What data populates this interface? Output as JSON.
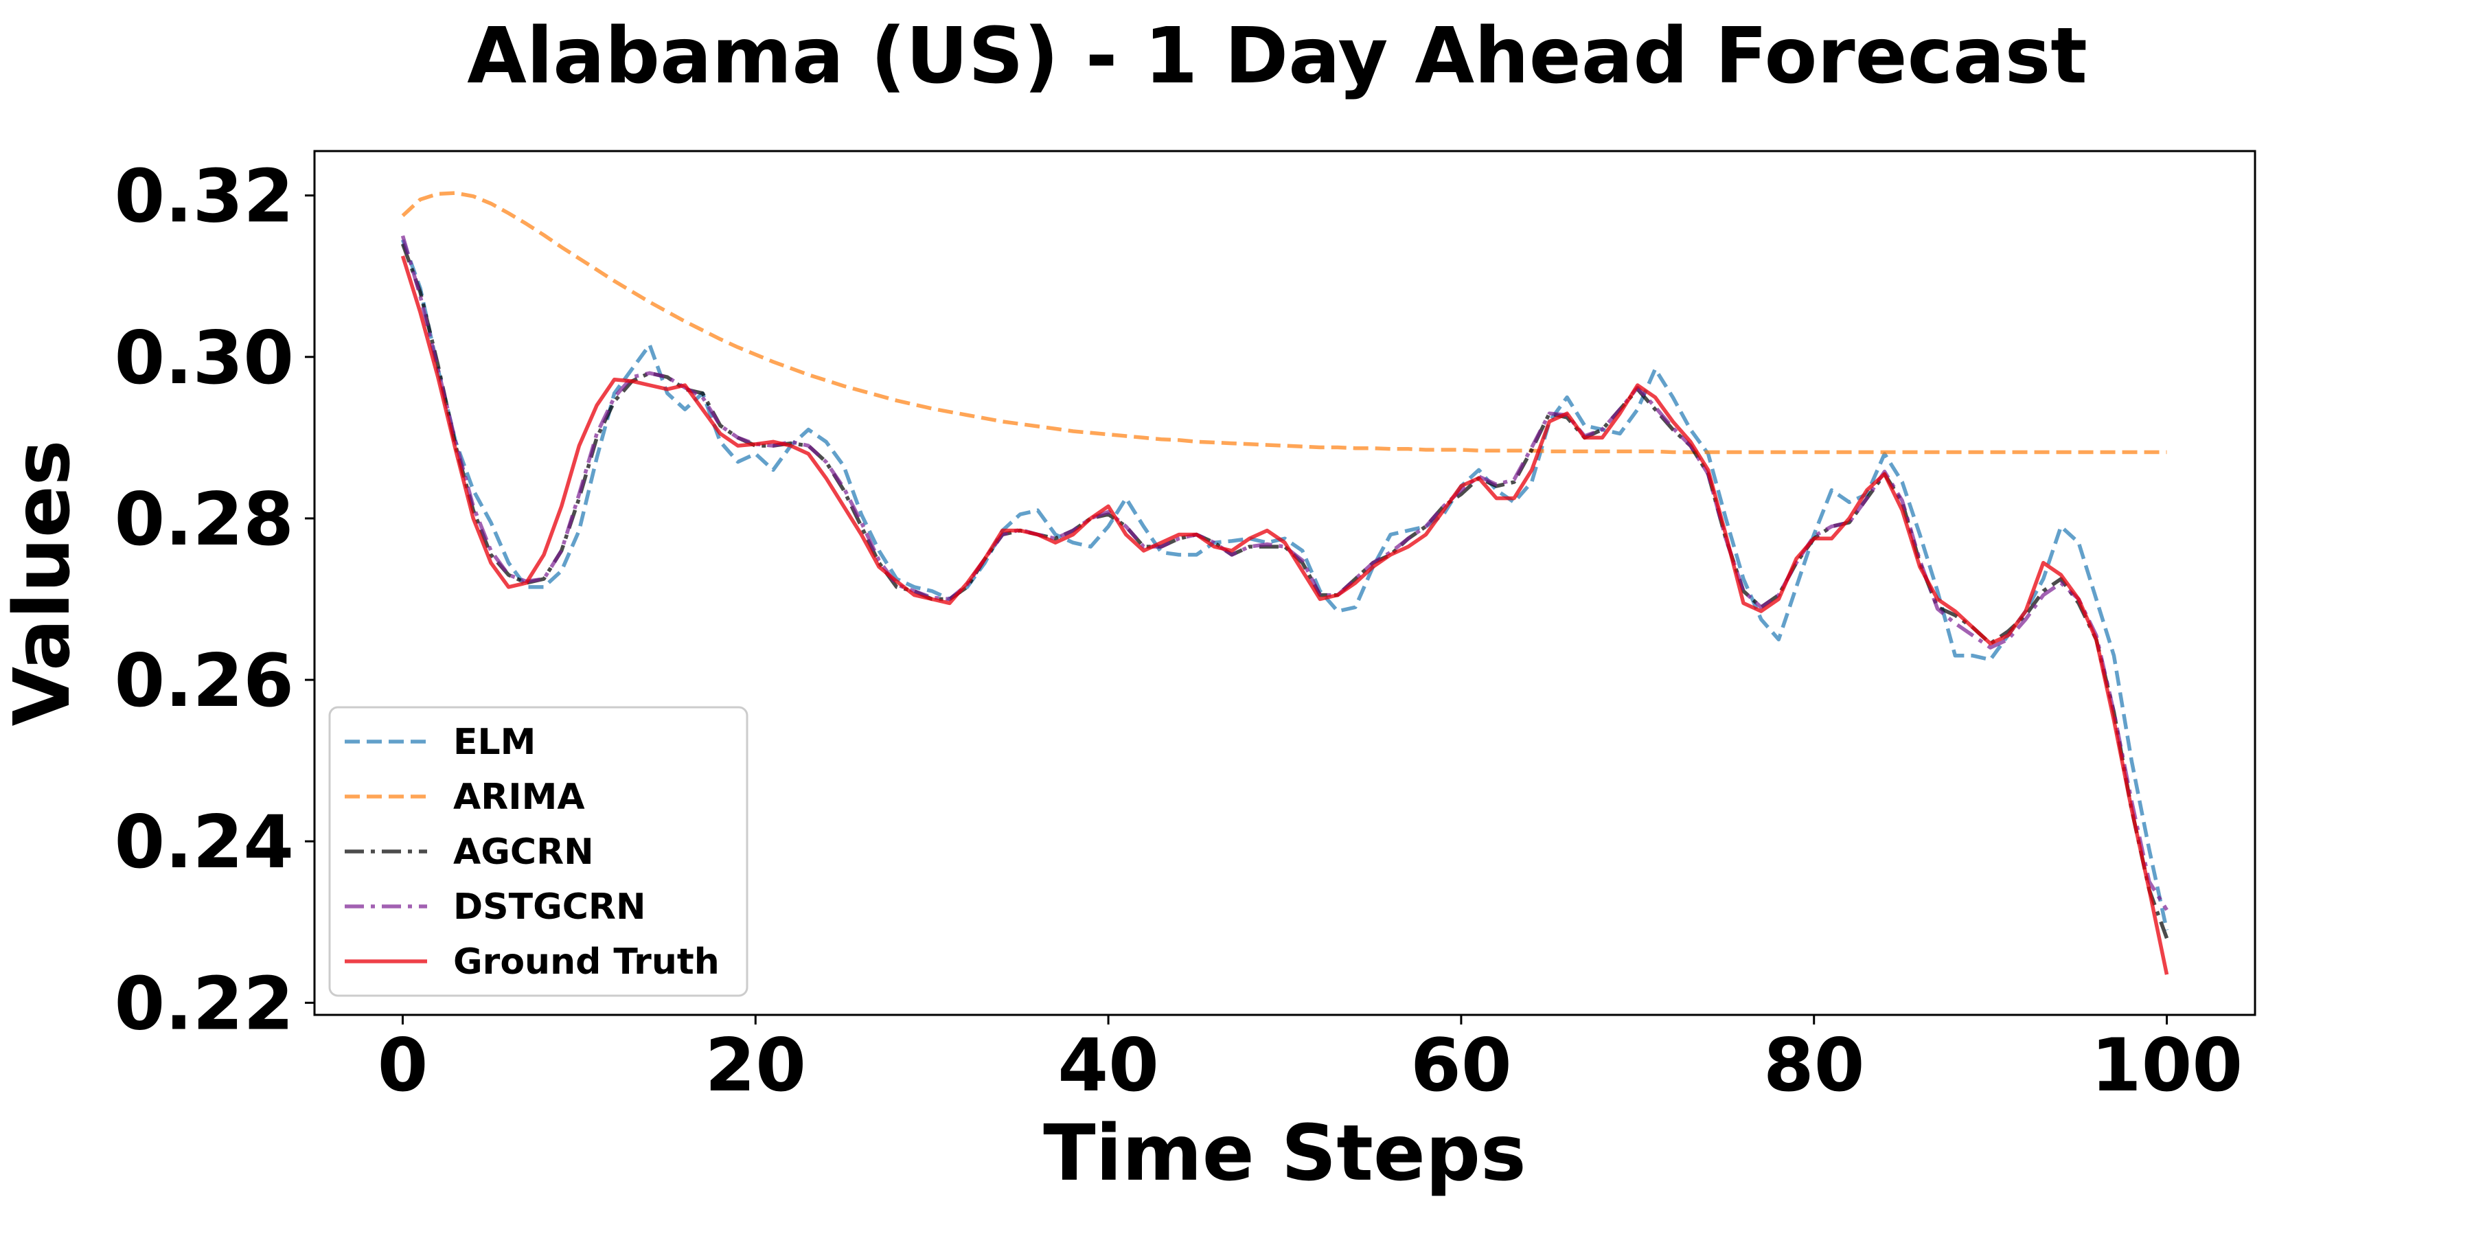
{
  "chart_data": {
    "type": "line",
    "title": "Alabama (US) - 1 Day Ahead Forecast",
    "xlabel": "Time Steps",
    "ylabel": "Values",
    "xlim": [
      -5,
      105
    ],
    "ylim": [
      0.2185,
      0.3255
    ],
    "xticks": [
      0,
      20,
      40,
      60,
      80,
      100
    ],
    "xtick_labels": [
      "0",
      "20",
      "40",
      "60",
      "80",
      "100"
    ],
    "yticks": [
      0.22,
      0.24,
      0.26,
      0.28,
      0.3,
      0.32
    ],
    "ytick_labels": [
      "0.22",
      "0.24",
      "0.26",
      "0.28",
      "0.30",
      "0.32"
    ],
    "grid": false,
    "legend_position": "lower-left",
    "x": [
      0,
      1,
      2,
      3,
      4,
      5,
      6,
      7,
      8,
      9,
      10,
      11,
      12,
      13,
      14,
      15,
      16,
      17,
      18,
      19,
      20,
      21,
      22,
      23,
      24,
      25,
      26,
      27,
      28,
      29,
      30,
      31,
      32,
      33,
      34,
      35,
      36,
      37,
      38,
      39,
      40,
      41,
      42,
      43,
      44,
      45,
      46,
      47,
      48,
      49,
      50,
      51,
      52,
      53,
      54,
      55,
      56,
      57,
      58,
      59,
      60,
      61,
      62,
      63,
      64,
      65,
      66,
      67,
      68,
      69,
      70,
      71,
      72,
      73,
      74,
      75,
      76,
      77,
      78,
      79,
      80,
      81,
      82,
      83,
      84,
      85,
      86,
      87,
      88,
      89,
      90,
      91,
      92,
      93,
      94,
      95,
      96,
      97,
      98,
      99,
      100
    ],
    "series": [
      {
        "name": "ELM",
        "color": "#1f77b4",
        "dash": "dashed",
        "values": [
          0.3145,
          0.3085,
          0.2985,
          0.2895,
          0.2835,
          0.2795,
          0.2745,
          0.2715,
          0.2715,
          0.2735,
          0.2785,
          0.2875,
          0.2955,
          0.2985,
          0.3015,
          0.2955,
          0.2935,
          0.2955,
          0.2895,
          0.287,
          0.288,
          0.286,
          0.289,
          0.291,
          0.2895,
          0.2865,
          0.2805,
          0.276,
          0.2725,
          0.2715,
          0.271,
          0.27,
          0.2715,
          0.2745,
          0.2785,
          0.2805,
          0.281,
          0.278,
          0.277,
          0.2765,
          0.279,
          0.2825,
          0.279,
          0.2758,
          0.2755,
          0.2755,
          0.277,
          0.2772,
          0.2775,
          0.277,
          0.2775,
          0.276,
          0.271,
          0.2685,
          0.269,
          0.274,
          0.278,
          0.2785,
          0.279,
          0.2805,
          0.284,
          0.286,
          0.2835,
          0.282,
          0.2845,
          0.292,
          0.295,
          0.2915,
          0.291,
          0.2905,
          0.2935,
          0.2985,
          0.295,
          0.291,
          0.288,
          0.28,
          0.2725,
          0.2675,
          0.265,
          0.2715,
          0.278,
          0.2835,
          0.282,
          0.283,
          0.288,
          0.2845,
          0.278,
          0.271,
          0.263,
          0.263,
          0.2625,
          0.2655,
          0.2685,
          0.2725,
          0.279,
          0.277,
          0.27,
          0.263,
          0.25,
          0.239,
          0.229
        ]
      },
      {
        "name": "ARIMA",
        "color": "#ff7f0e",
        "dash": "dashed",
        "values": [
          0.3175,
          0.3195,
          0.3202,
          0.3203,
          0.3199,
          0.319,
          0.3178,
          0.3165,
          0.3151,
          0.3136,
          0.3122,
          0.3108,
          0.3094,
          0.3081,
          0.3068,
          0.3056,
          0.3044,
          0.3033,
          0.3022,
          0.3012,
          0.3003,
          0.2994,
          0.2986,
          0.2978,
          0.2971,
          0.2964,
          0.2958,
          0.2952,
          0.2946,
          0.2941,
          0.2936,
          0.2932,
          0.2928,
          0.2924,
          0.292,
          0.2917,
          0.2914,
          0.2911,
          0.2908,
          0.2906,
          0.2904,
          0.2902,
          0.29,
          0.2898,
          0.2897,
          0.2895,
          0.2894,
          0.2893,
          0.2892,
          0.2891,
          0.289,
          0.2889,
          0.2888,
          0.2888,
          0.2887,
          0.2887,
          0.2886,
          0.2886,
          0.2885,
          0.2885,
          0.2885,
          0.2884,
          0.2884,
          0.2884,
          0.2884,
          0.2883,
          0.2883,
          0.2883,
          0.2883,
          0.2883,
          0.2883,
          0.2883,
          0.2882,
          0.2882,
          0.2882,
          0.2882,
          0.2882,
          0.2882,
          0.2882,
          0.2882,
          0.2882,
          0.2882,
          0.2882,
          0.2882,
          0.2882,
          0.2882,
          0.2882,
          0.2882,
          0.2882,
          0.2882,
          0.2882,
          0.2882,
          0.2882,
          0.2882,
          0.2882,
          0.2882,
          0.2882,
          0.2882,
          0.2882,
          0.2882,
          0.2882
        ]
      },
      {
        "name": "AGCRN",
        "color": "#000000",
        "dash": "dashdot",
        "values": [
          0.314,
          0.308,
          0.299,
          0.289,
          0.281,
          0.2755,
          0.273,
          0.272,
          0.2725,
          0.276,
          0.2825,
          0.29,
          0.2945,
          0.297,
          0.298,
          0.2975,
          0.296,
          0.2955,
          0.2915,
          0.29,
          0.289,
          0.289,
          0.2893,
          0.289,
          0.287,
          0.2835,
          0.279,
          0.2745,
          0.2715,
          0.271,
          0.27,
          0.27,
          0.2715,
          0.275,
          0.278,
          0.2785,
          0.278,
          0.2775,
          0.2785,
          0.28,
          0.2805,
          0.279,
          0.2765,
          0.2765,
          0.2775,
          0.278,
          0.277,
          0.2755,
          0.2765,
          0.2765,
          0.2765,
          0.2745,
          0.2705,
          0.2705,
          0.2725,
          0.2745,
          0.2755,
          0.2775,
          0.279,
          0.2815,
          0.283,
          0.285,
          0.284,
          0.2845,
          0.2885,
          0.293,
          0.2925,
          0.29,
          0.291,
          0.2935,
          0.296,
          0.2935,
          0.291,
          0.289,
          0.2855,
          0.2775,
          0.271,
          0.269,
          0.2705,
          0.2745,
          0.2775,
          0.279,
          0.2795,
          0.2825,
          0.2855,
          0.282,
          0.2745,
          0.269,
          0.268,
          0.2665,
          0.2645,
          0.266,
          0.268,
          0.271,
          0.2725,
          0.2695,
          0.265,
          0.256,
          0.244,
          0.234,
          0.228
        ]
      },
      {
        "name": "DSTGCRN",
        "color": "#7b1e92",
        "dash": "dashdot",
        "values": [
          0.315,
          0.3075,
          0.2985,
          0.2895,
          0.2815,
          0.276,
          0.273,
          0.2722,
          0.2725,
          0.276,
          0.283,
          0.2905,
          0.295,
          0.2975,
          0.298,
          0.2975,
          0.2962,
          0.295,
          0.2915,
          0.29,
          0.2892,
          0.289,
          0.2895,
          0.289,
          0.287,
          0.2838,
          0.2795,
          0.2748,
          0.2718,
          0.271,
          0.2702,
          0.27,
          0.2718,
          0.275,
          0.278,
          0.2786,
          0.278,
          0.2775,
          0.2785,
          0.28,
          0.2808,
          0.279,
          0.2765,
          0.2765,
          0.2775,
          0.278,
          0.277,
          0.2755,
          0.2765,
          0.2768,
          0.2765,
          0.2748,
          0.2705,
          0.2705,
          0.2725,
          0.2745,
          0.2758,
          0.2775,
          0.279,
          0.2815,
          0.2835,
          0.2852,
          0.2842,
          0.2848,
          0.2888,
          0.293,
          0.2928,
          0.2902,
          0.291,
          0.2935,
          0.2962,
          0.2938,
          0.2912,
          0.289,
          0.2855,
          0.2775,
          0.271,
          0.269,
          0.2705,
          0.2745,
          0.2778,
          0.279,
          0.2795,
          0.2825,
          0.2858,
          0.2822,
          0.2748,
          0.2688,
          0.267,
          0.2655,
          0.264,
          0.265,
          0.2675,
          0.2705,
          0.272,
          0.27,
          0.2655,
          0.256,
          0.245,
          0.235,
          0.2315
        ]
      },
      {
        "name": "Ground Truth",
        "color": "#e8000b",
        "dash": "solid",
        "values": [
          0.3125,
          0.3055,
          0.2975,
          0.2885,
          0.28,
          0.2745,
          0.2715,
          0.272,
          0.2755,
          0.2815,
          0.289,
          0.294,
          0.2972,
          0.297,
          0.2965,
          0.296,
          0.2965,
          0.2935,
          0.2905,
          0.289,
          0.2892,
          0.2895,
          0.289,
          0.288,
          0.285,
          0.2815,
          0.278,
          0.274,
          0.2722,
          0.2705,
          0.27,
          0.2695,
          0.272,
          0.275,
          0.2785,
          0.2785,
          0.278,
          0.277,
          0.278,
          0.28,
          0.2815,
          0.278,
          0.276,
          0.277,
          0.278,
          0.278,
          0.2765,
          0.276,
          0.2775,
          0.2785,
          0.277,
          0.2735,
          0.27,
          0.2705,
          0.272,
          0.274,
          0.2755,
          0.2765,
          0.278,
          0.281,
          0.284,
          0.285,
          0.2825,
          0.2825,
          0.286,
          0.292,
          0.293,
          0.29,
          0.29,
          0.293,
          0.2965,
          0.295,
          0.292,
          0.2895,
          0.286,
          0.278,
          0.2695,
          0.2685,
          0.27,
          0.275,
          0.2775,
          0.2775,
          0.28,
          0.2835,
          0.2855,
          0.281,
          0.274,
          0.27,
          0.2685,
          0.2665,
          0.2645,
          0.2655,
          0.2685,
          0.2745,
          0.273,
          0.27,
          0.265,
          0.255,
          0.244,
          0.234,
          0.2235
        ]
      }
    ]
  }
}
